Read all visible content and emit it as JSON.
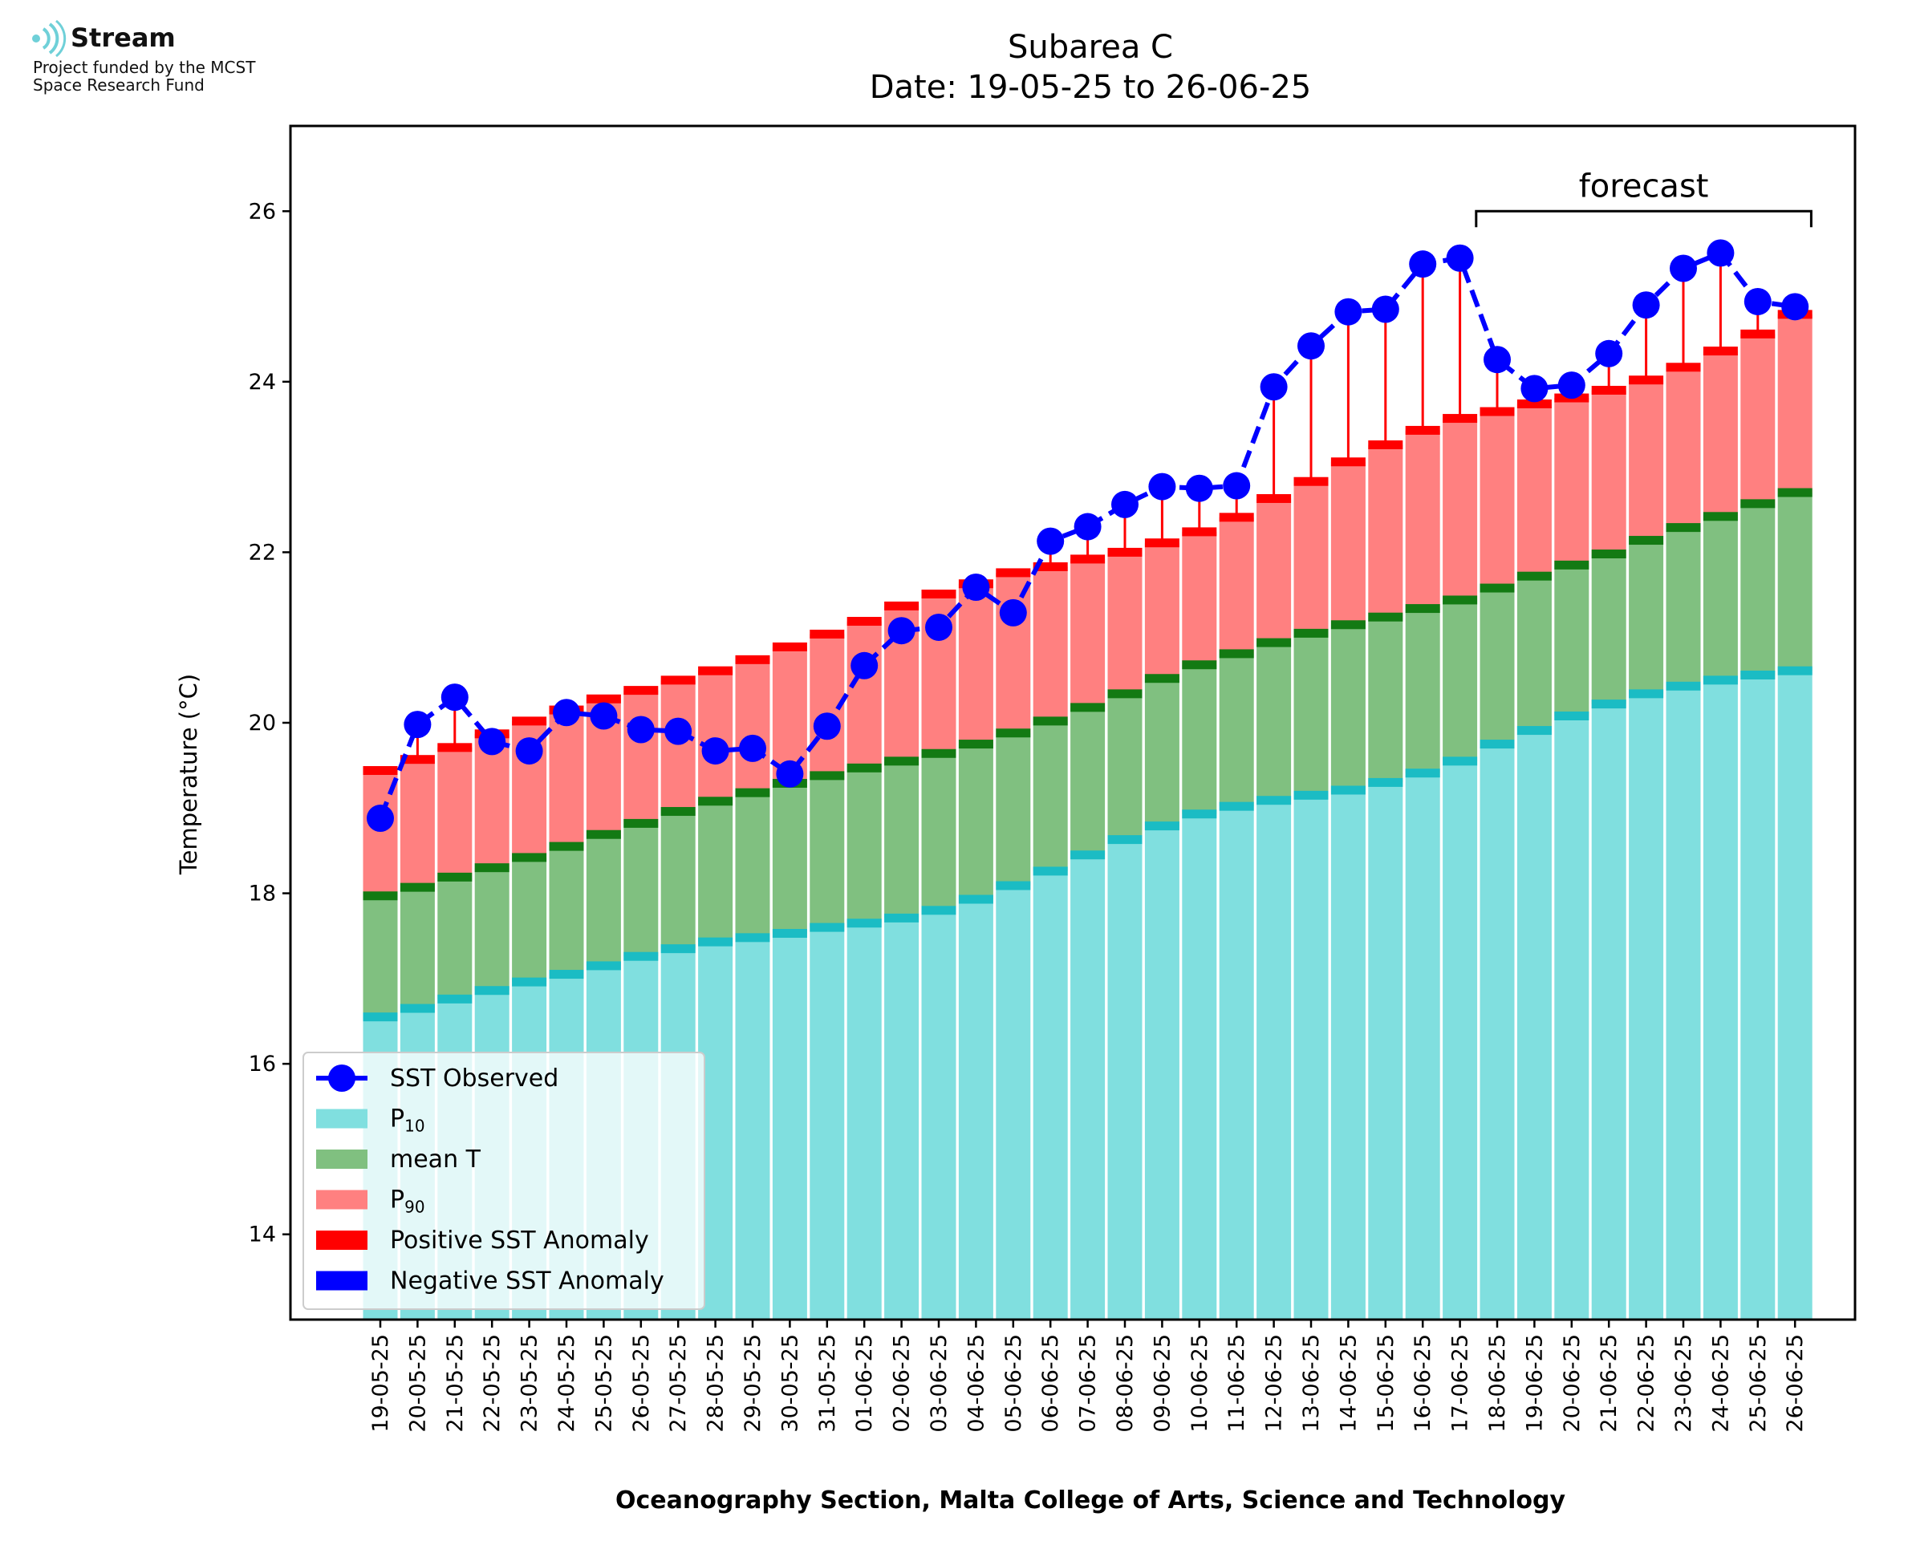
{
  "logo": {
    "name": "Stream",
    "line1": "Project funded by the MCST",
    "line2": "Space Research Fund",
    "icon": "stream-wave-icon"
  },
  "chart_data": {
    "type": "bar",
    "title": "Subarea C",
    "subtitle": "Date: 19-05-25 to 26-06-25",
    "ylabel": "Temperature (°C)",
    "xlabel": "Oceanography Section, Malta College of Arts, Science and Technology",
    "ylim": [
      13,
      27
    ],
    "yticks": [
      14,
      16,
      18,
      20,
      22,
      24,
      26
    ],
    "annotation": "forecast",
    "forecast_range": [
      "18-06-25",
      "26-06-25"
    ],
    "legend_position": "lower left",
    "categories": [
      "19-05-25",
      "20-05-25",
      "21-05-25",
      "22-05-25",
      "23-05-25",
      "24-05-25",
      "25-05-25",
      "26-05-25",
      "27-05-25",
      "28-05-25",
      "29-05-25",
      "30-05-25",
      "31-05-25",
      "01-06-25",
      "02-06-25",
      "03-06-25",
      "04-06-25",
      "05-06-25",
      "06-06-25",
      "07-06-25",
      "08-06-25",
      "09-06-25",
      "10-06-25",
      "11-06-25",
      "12-06-25",
      "13-06-25",
      "14-06-25",
      "15-06-25",
      "16-06-25",
      "17-06-25",
      "18-06-25",
      "19-06-25",
      "20-06-25",
      "21-06-25",
      "22-06-25",
      "23-06-25",
      "24-06-25",
      "25-06-25",
      "26-06-25"
    ],
    "series": [
      {
        "name": "SST Observed",
        "color": "#0000ff",
        "values": [
          18.88,
          19.98,
          20.3,
          19.78,
          19.67,
          20.12,
          20.08,
          19.92,
          19.9,
          19.67,
          19.7,
          19.4,
          19.96,
          20.67,
          21.08,
          21.12,
          21.59,
          21.29,
          22.13,
          22.3,
          22.56,
          22.77,
          22.75,
          22.78,
          23.94,
          24.42,
          24.82,
          24.85,
          25.38,
          25.45,
          24.26,
          23.92,
          23.96,
          24.33,
          24.9,
          25.33,
          25.51,
          24.94,
          24.88
        ]
      },
      {
        "name": "P10",
        "color": "#80dfdf",
        "values": [
          16.55,
          16.65,
          16.76,
          16.86,
          16.96,
          17.05,
          17.15,
          17.26,
          17.35,
          17.43,
          17.48,
          17.53,
          17.6,
          17.65,
          17.71,
          17.8,
          17.93,
          18.09,
          18.26,
          18.45,
          18.63,
          18.79,
          18.93,
          19.02,
          19.09,
          19.15,
          19.21,
          19.3,
          19.41,
          19.55,
          19.75,
          19.91,
          20.08,
          20.22,
          20.34,
          20.43,
          20.5,
          20.56,
          20.61
        ]
      },
      {
        "name": "mean T",
        "color": "#80c080",
        "values": [
          17.97,
          18.07,
          18.19,
          18.3,
          18.42,
          18.55,
          18.69,
          18.82,
          18.96,
          19.08,
          19.18,
          19.29,
          19.38,
          19.47,
          19.55,
          19.64,
          19.75,
          19.88,
          20.02,
          20.18,
          20.34,
          20.52,
          20.68,
          20.81,
          20.94,
          21.05,
          21.15,
          21.24,
          21.34,
          21.44,
          21.58,
          21.72,
          21.85,
          21.98,
          22.14,
          22.29,
          22.42,
          22.57,
          22.7
        ]
      },
      {
        "name": "P90",
        "color": "#ff8080",
        "values": [
          19.44,
          19.57,
          19.71,
          19.87,
          20.02,
          20.15,
          20.28,
          20.38,
          20.5,
          20.61,
          20.74,
          20.89,
          21.04,
          21.19,
          21.37,
          21.51,
          21.63,
          21.76,
          21.83,
          21.92,
          22.0,
          22.11,
          22.24,
          22.41,
          22.63,
          22.83,
          23.06,
          23.26,
          23.43,
          23.57,
          23.65,
          23.74,
          23.81,
          23.9,
          24.02,
          24.17,
          24.36,
          24.56,
          24.79
        ]
      },
      {
        "name": "Positive SST Anomaly",
        "color": "#ff0000"
      },
      {
        "name": "Negative SST Anomaly",
        "color": "#0000ff"
      }
    ]
  },
  "legend": {
    "items": [
      {
        "label": "SST Observed",
        "marker": "line-dot",
        "color": "#0000ff"
      },
      {
        "label_main": "P",
        "label_sub": "10",
        "marker": "patch",
        "color": "#80dfdf"
      },
      {
        "label": "mean T",
        "marker": "patch",
        "color": "#80c080"
      },
      {
        "label_main": "P",
        "label_sub": "90",
        "marker": "patch",
        "color": "#ff8080"
      },
      {
        "label": "Positive SST Anomaly",
        "marker": "patch",
        "color": "#ff0000"
      },
      {
        "label": "Negative SST Anomaly",
        "marker": "patch",
        "color": "#0000ff"
      }
    ]
  }
}
